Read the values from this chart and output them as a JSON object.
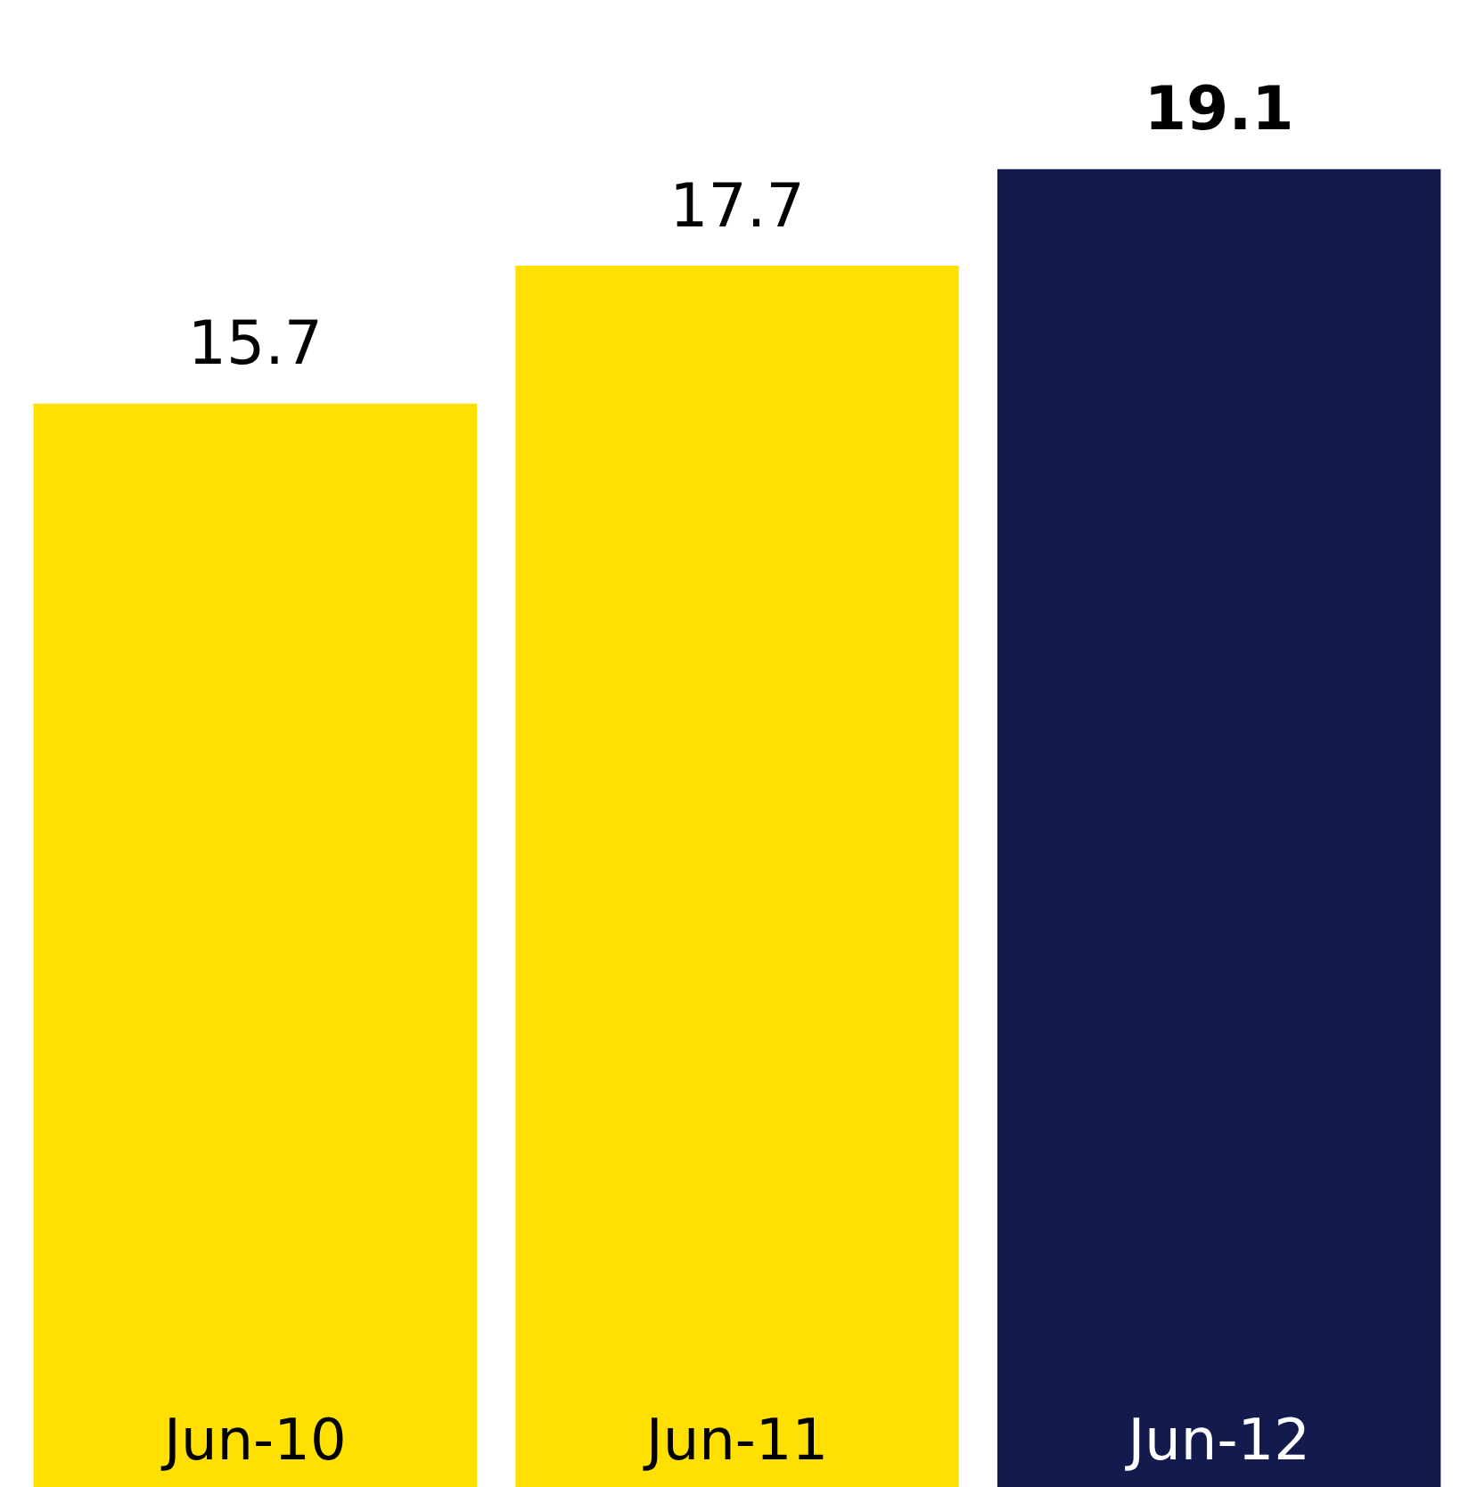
{
  "chart_data": {
    "type": "bar",
    "categories": [
      "Jun-10",
      "Jun-11",
      "Jun-12"
    ],
    "values": [
      15.7,
      17.7,
      19.1
    ],
    "colors": [
      "#ffe000",
      "#ffe000",
      "#131a4e"
    ],
    "data_labels": true
  }
}
